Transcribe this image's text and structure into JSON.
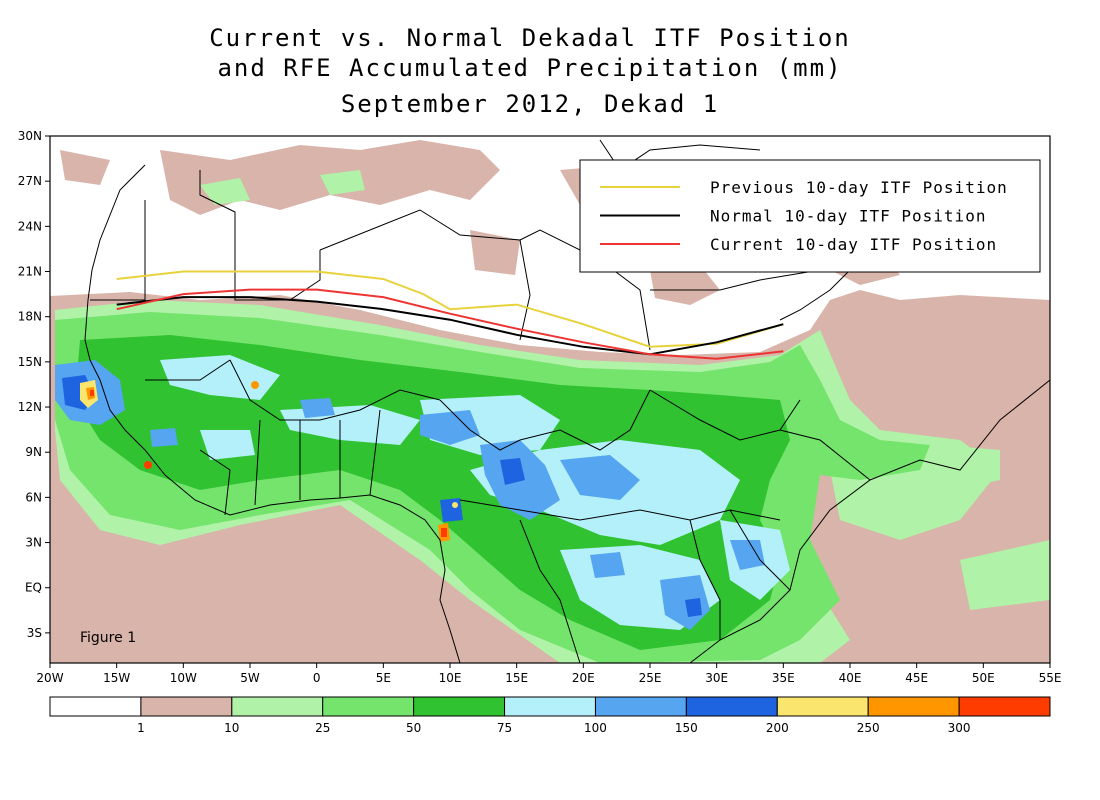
{
  "title": {
    "line1": "Current vs. Normal Dekadal ITF Position",
    "line2": "and RFE Accumulated Precipitation (mm)",
    "line3": "September 2012, Dekad 1"
  },
  "figure_label": "Figure 1",
  "lat_labels": [
    "30N",
    "27N",
    "24N",
    "21N",
    "18N",
    "15N",
    "12N",
    "9N",
    "6N",
    "3N",
    "EQ",
    "3S"
  ],
  "lon_labels": [
    "20W",
    "15W",
    "10W",
    "5W",
    "0",
    "5E",
    "10E",
    "15E",
    "20E",
    "25E",
    "30E",
    "35E",
    "40E",
    "45E",
    "50E",
    "55E"
  ],
  "legend": [
    {
      "label": "Previous 10-day ITF Position",
      "color": "#e8d23c"
    },
    {
      "label": "Normal 10-day ITF Position",
      "color": "#000000"
    },
    {
      "label": "Current 10-day ITF Position",
      "color": "#ee3333"
    }
  ],
  "itf_lines": {
    "previous": [
      [
        -15,
        20.5
      ],
      [
        -10,
        21.0
      ],
      [
        -5,
        21.0
      ],
      [
        0,
        21.0
      ],
      [
        5,
        20.5
      ],
      [
        8,
        19.5
      ],
      [
        10,
        18.5
      ],
      [
        15,
        18.8
      ],
      [
        20,
        17.5
      ],
      [
        25,
        16.0
      ],
      [
        30,
        16.2
      ],
      [
        35,
        17.5
      ]
    ],
    "normal": [
      [
        -15,
        18.8
      ],
      [
        -10,
        19.3
      ],
      [
        -5,
        19.3
      ],
      [
        0,
        19.0
      ],
      [
        5,
        18.5
      ],
      [
        10,
        17.8
      ],
      [
        15,
        16.8
      ],
      [
        20,
        16.0
      ],
      [
        25,
        15.5
      ],
      [
        30,
        16.3
      ],
      [
        35,
        17.5
      ]
    ],
    "current": [
      [
        -15,
        18.5
      ],
      [
        -10,
        19.5
      ],
      [
        -5,
        19.8
      ],
      [
        0,
        19.8
      ],
      [
        5,
        19.3
      ],
      [
        10,
        18.2
      ],
      [
        15,
        17.2
      ],
      [
        20,
        16.3
      ],
      [
        25,
        15.5
      ],
      [
        30,
        15.2
      ],
      [
        35,
        15.7
      ]
    ]
  },
  "color_bar": {
    "ticks": [
      "1",
      "10",
      "25",
      "50",
      "75",
      "100",
      "150",
      "200",
      "250",
      "300"
    ],
    "colors": [
      "#ffffff",
      "#d9b4aa",
      "#b0f2a7",
      "#74e46c",
      "#30c230",
      "#b4f0fa",
      "#55a5f0",
      "#1e64e1",
      "#fae66e",
      "#ff9600",
      "#ff3c00"
    ]
  }
}
